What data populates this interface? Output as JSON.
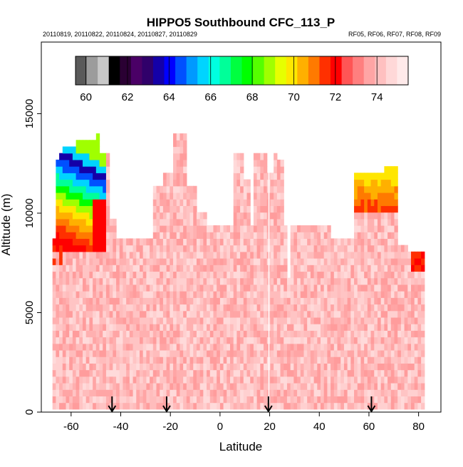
{
  "chart_data": {
    "type": "heatmap",
    "title": "HIPPO5 Southbound CFC_113_P",
    "subtitle_left": "20110819, 20110822, 20110824, 20110827, 20110829",
    "subtitle_right": "RF05, RF06, RF07, RF08, RF09",
    "xlabel": "Latitude",
    "ylabel": "Altitude (m)",
    "xlim": [
      -72,
      89
    ],
    "ylim": [
      0,
      18600
    ],
    "x_ticks": [
      -60,
      -40,
      -20,
      0,
      20,
      40,
      60,
      80
    ],
    "y_ticks": [
      0,
      5000,
      10000,
      15000
    ],
    "colorbar": {
      "min": 59.5,
      "max": 75.5,
      "tick_values": [
        60,
        62,
        64,
        66,
        68,
        70,
        72,
        74
      ],
      "colors": [
        "#5a5a5a",
        "#9c9c9c",
        "#c8c8c8",
        "#000000",
        "#2a0033",
        "#4a0066",
        "#30006a",
        "#1400a8",
        "#0000ff",
        "#0050ff",
        "#0099ff",
        "#00d4ff",
        "#00ffe0",
        "#00ff99",
        "#00ff40",
        "#00ff00",
        "#55ff00",
        "#a0ff00",
        "#e6ff00",
        "#ffe600",
        "#ffb000",
        "#ff7a00",
        "#ff3000",
        "#ff0000",
        "#ff5555",
        "#ff7f7f",
        "#ffa5a5",
        "#ffc0c0",
        "#ffd8d8",
        "#ffeaea"
      ]
    },
    "flight_date_markers_latitude": [
      -43.5,
      -21.5,
      19.5,
      61
    ]
  }
}
